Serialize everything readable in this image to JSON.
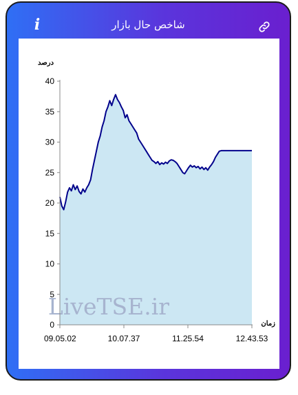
{
  "header": {
    "title": "شاخص حال بازار",
    "info_icon": "info-icon",
    "link_icon": "link-icon"
  },
  "watermark": "LiveTSE.ir",
  "chart_data": {
    "type": "area",
    "ylabel": "درصد",
    "xlabel": "زمان",
    "ylim": [
      0,
      40
    ],
    "yticks": [
      "0",
      "5",
      "10",
      "15",
      "20",
      "25",
      "30",
      "35",
      "40"
    ],
    "xticks": [
      "09.05.02",
      "10.07.37",
      "11.25.54",
      "12.43.53"
    ],
    "grid": false,
    "colors": {
      "line": "#00008b",
      "fill": "#cce7f3"
    },
    "series": [
      {
        "points": [
          [
            0.0,
            21.0
          ],
          [
            0.01,
            19.5
          ],
          [
            0.02,
            18.9
          ],
          [
            0.03,
            20.2
          ],
          [
            0.04,
            21.8
          ],
          [
            0.05,
            22.5
          ],
          [
            0.06,
            22.0
          ],
          [
            0.07,
            23.0
          ],
          [
            0.08,
            22.2
          ],
          [
            0.09,
            22.8
          ],
          [
            0.1,
            21.9
          ],
          [
            0.11,
            21.5
          ],
          [
            0.12,
            22.3
          ],
          [
            0.13,
            21.8
          ],
          [
            0.14,
            22.5
          ],
          [
            0.15,
            23.0
          ],
          [
            0.16,
            23.8
          ],
          [
            0.17,
            25.5
          ],
          [
            0.18,
            27.0
          ],
          [
            0.19,
            28.5
          ],
          [
            0.2,
            30.0
          ],
          [
            0.21,
            31.0
          ],
          [
            0.22,
            32.5
          ],
          [
            0.23,
            33.5
          ],
          [
            0.24,
            35.0
          ],
          [
            0.25,
            35.8
          ],
          [
            0.26,
            36.8
          ],
          [
            0.27,
            36.0
          ],
          [
            0.28,
            37.0
          ],
          [
            0.29,
            37.8
          ],
          [
            0.3,
            37.0
          ],
          [
            0.31,
            36.5
          ],
          [
            0.32,
            35.8
          ],
          [
            0.33,
            35.2
          ],
          [
            0.34,
            34.0
          ],
          [
            0.35,
            34.5
          ],
          [
            0.36,
            33.5
          ],
          [
            0.37,
            33.0
          ],
          [
            0.38,
            32.5
          ],
          [
            0.39,
            32.0
          ],
          [
            0.4,
            31.5
          ],
          [
            0.41,
            30.5
          ],
          [
            0.42,
            30.0
          ],
          [
            0.43,
            29.5
          ],
          [
            0.44,
            29.0
          ],
          [
            0.45,
            28.5
          ],
          [
            0.46,
            28.0
          ],
          [
            0.47,
            27.5
          ],
          [
            0.48,
            27.0
          ],
          [
            0.49,
            26.8
          ],
          [
            0.5,
            26.5
          ],
          [
            0.51,
            26.8
          ],
          [
            0.52,
            26.3
          ],
          [
            0.53,
            26.6
          ],
          [
            0.54,
            26.4
          ],
          [
            0.55,
            26.7
          ],
          [
            0.56,
            26.5
          ],
          [
            0.57,
            26.9
          ],
          [
            0.58,
            27.1
          ],
          [
            0.59,
            27.0
          ],
          [
            0.6,
            26.8
          ],
          [
            0.61,
            26.5
          ],
          [
            0.62,
            26.0
          ],
          [
            0.63,
            25.5
          ],
          [
            0.64,
            25.0
          ],
          [
            0.65,
            24.8
          ],
          [
            0.66,
            25.3
          ],
          [
            0.67,
            25.8
          ],
          [
            0.68,
            26.2
          ],
          [
            0.69,
            25.9
          ],
          [
            0.7,
            26.1
          ],
          [
            0.71,
            25.8
          ],
          [
            0.72,
            26.0
          ],
          [
            0.73,
            25.6
          ],
          [
            0.74,
            25.9
          ],
          [
            0.75,
            25.5
          ],
          [
            0.76,
            25.8
          ],
          [
            0.77,
            25.4
          ],
          [
            0.78,
            25.9
          ],
          [
            0.79,
            26.3
          ],
          [
            0.8,
            26.8
          ],
          [
            0.81,
            27.5
          ],
          [
            0.82,
            28.0
          ],
          [
            0.83,
            28.5
          ],
          [
            0.84,
            28.6
          ],
          [
            0.86,
            28.6
          ],
          [
            0.9,
            28.6
          ],
          [
            1.0,
            28.6
          ]
        ]
      }
    ]
  }
}
